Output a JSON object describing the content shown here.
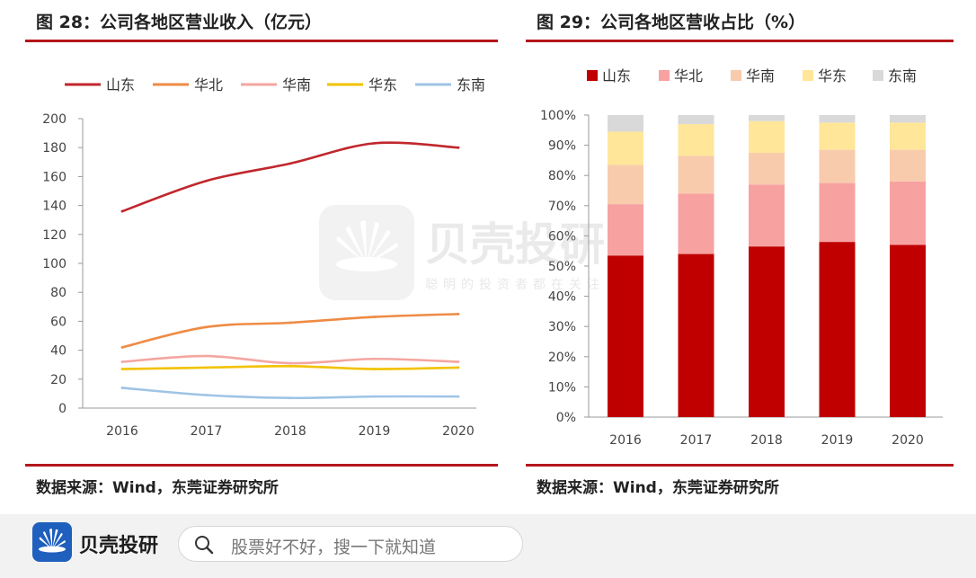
{
  "left_panel": {
    "title": "图 28：公司各地区营业收入（亿元）",
    "source": "数据来源：Wind，东莞证券研究所"
  },
  "right_panel": {
    "title": "图 29：公司各地区营收占比（%）",
    "source": "数据来源：Wind，东莞证券研究所"
  },
  "chart_data": [
    {
      "type": "line",
      "title": "图 28：公司各地区营业收入（亿元）",
      "xlabel": "",
      "ylabel": "",
      "x": [
        "2016",
        "2017",
        "2018",
        "2019",
        "2020"
      ],
      "ylim": [
        0,
        200
      ],
      "yticks": [
        "0",
        "20",
        "40",
        "60",
        "80",
        "100",
        "120",
        "140",
        "160",
        "180",
        "200"
      ],
      "legend_position": "top",
      "grid": false,
      "series": [
        {
          "name": "山东",
          "color": "#c0272d",
          "values": [
            136,
            157,
            169,
            183,
            180
          ]
        },
        {
          "name": "华北",
          "color": "#ee8b45",
          "values": [
            42,
            56,
            59,
            63,
            65
          ]
        },
        {
          "name": "华南",
          "color": "#f4a6a0",
          "values": [
            32,
            36,
            31,
            34,
            32
          ]
        },
        {
          "name": "华东",
          "color": "#f2c200",
          "values": [
            27,
            28,
            29,
            27,
            28
          ]
        },
        {
          "name": "东南",
          "color": "#9ec4e6",
          "values": [
            14,
            9,
            7,
            8,
            8
          ]
        }
      ]
    },
    {
      "type": "bar",
      "stacked": true,
      "title": "图 29：公司各地区营收占比（%）",
      "xlabel": "",
      "ylabel": "",
      "categories": [
        "2016",
        "2017",
        "2018",
        "2019",
        "2020"
      ],
      "ylim": [
        0,
        100
      ],
      "yticks": [
        "0%",
        "10%",
        "20%",
        "30%",
        "40%",
        "50%",
        "60%",
        "70%",
        "80%",
        "90%",
        "100%"
      ],
      "legend_position": "top",
      "grid": false,
      "series": [
        {
          "name": "山东",
          "color": "#c00000",
          "values": [
            53.5,
            54.0,
            56.5,
            58.0,
            57.0
          ]
        },
        {
          "name": "华北",
          "color": "#f7a1a1",
          "values": [
            17.0,
            20.0,
            20.5,
            19.5,
            21.0
          ]
        },
        {
          "name": "华南",
          "color": "#f8cbad",
          "values": [
            13.0,
            12.5,
            10.5,
            11.0,
            10.5
          ]
        },
        {
          "name": "华东",
          "color": "#ffe699",
          "values": [
            11.0,
            10.5,
            10.5,
            9.0,
            9.0
          ]
        },
        {
          "name": "东南",
          "color": "#d9d9d9",
          "values": [
            5.5,
            3.0,
            2.0,
            2.5,
            2.5
          ]
        }
      ]
    }
  ],
  "watermark": {
    "title": "贝壳投研",
    "slogan": "聪明的投资者都在关注"
  },
  "footer": {
    "brand": "贝壳投研",
    "search_placeholder": "股票好不好，搜一下就知道",
    "logo_icon": "shell-logo-icon",
    "search_icon": "search-icon"
  },
  "colors": {
    "rule": "#b3161b",
    "footer_background": "#f2f2f2",
    "logo_blue": "#1f5fbd"
  }
}
